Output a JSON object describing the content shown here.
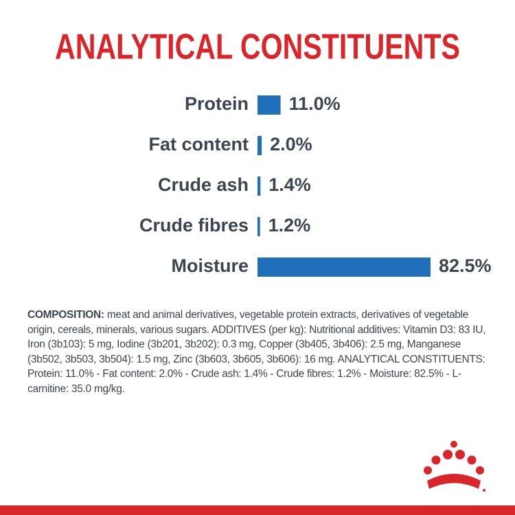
{
  "chart_data": {
    "type": "bar",
    "orientation": "horizontal",
    "title": "ANALYTICAL CONSTITUENTS",
    "categories": [
      "Protein",
      "Fat content",
      "Crude ash",
      "Crude fibres",
      "Moisture"
    ],
    "values": [
      11.0,
      2.0,
      1.4,
      1.2,
      82.5
    ],
    "value_labels": [
      "11.0%",
      "2.0%",
      "1.4%",
      "1.2%",
      "82.5%"
    ],
    "color": "#1f6fba"
  },
  "composition": {
    "label": "COMPOSITION:",
    "text": "meat and animal derivatives, vegetable protein extracts, derivatives of vegetable origin, cereals, minerals, various sugars. ADDITIVES (per kg): Nutritional additives: Vitamin D3: 83 IU, Iron (3b103): 5 mg, Iodine (3b201, 3b202): 0.3 mg, Copper (3b405, 3b406): 2.5 mg, Manganese (3b502, 3b503, 3b504): 1.5 mg, Zinc (3b603, 3b605, 3b606): 16 mg. ANALYTICAL CONSTITUENTS: Protein: 11.0% - Fat content: 2.0% - Crude ash: 1.4% - Crude fibres: 1.2% - Moisture: 82.5% - L-carnitine: 35.0 mg/kg."
  }
}
